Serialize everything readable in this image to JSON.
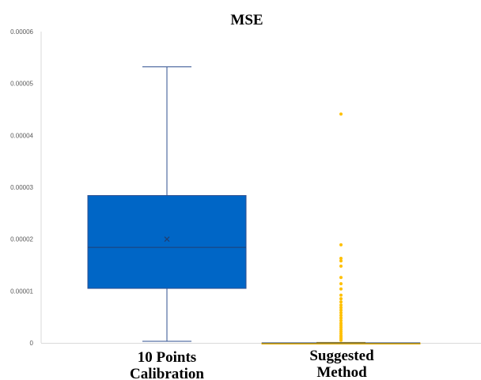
{
  "chart_data": {
    "type": "box",
    "title": "MSE",
    "xlabel": "",
    "ylabel": "",
    "ylim": [
      0,
      6e-05
    ],
    "yticks": [
      "0",
      "0.00001",
      "0.00002",
      "0.00003",
      "0.00004",
      "0.00005",
      "0.00006"
    ],
    "ytick_values": [
      0,
      1e-05,
      2e-05,
      3e-05,
      4e-05,
      5e-05,
      6e-05
    ],
    "grid": false,
    "legend": "none",
    "categories": [
      {
        "lines": [
          "10 Points",
          "Calibration"
        ]
      },
      {
        "lines": [
          "Suggested",
          "Method"
        ]
      }
    ],
    "boxes": [
      {
        "category": "10 Points Calibration",
        "min": 3e-07,
        "q1": 1.05e-05,
        "median": 1.84e-05,
        "q3": 2.84e-05,
        "max": 5.32e-05,
        "mean": 2e-05,
        "color": "#0066c6",
        "edge_color": "#2f4f8f",
        "outliers": []
      },
      {
        "category": "Suggested Method",
        "min": 0,
        "q1": 0,
        "median": 0,
        "q3": 0,
        "max": 1e-07,
        "color": "#ffc000",
        "edge_color": "#e6ad00",
        "outliers": [
          4.41e-05,
          1.89e-05,
          1.63e-05,
          1.58e-05,
          1.48e-05,
          1.26e-05,
          1.14e-05,
          1.04e-05,
          9.2e-06,
          8.5e-06,
          7.9e-06,
          7.3e-06,
          6.8e-06,
          6.3e-06,
          5.8e-06,
          5.3e-06,
          4.8e-06,
          4.3e-06,
          3.8e-06,
          3.4e-06,
          3e-06,
          2.6e-06,
          2.2e-06,
          1.8e-06,
          1.4e-06,
          1.1e-06,
          8e-07,
          5e-07
        ]
      }
    ]
  }
}
